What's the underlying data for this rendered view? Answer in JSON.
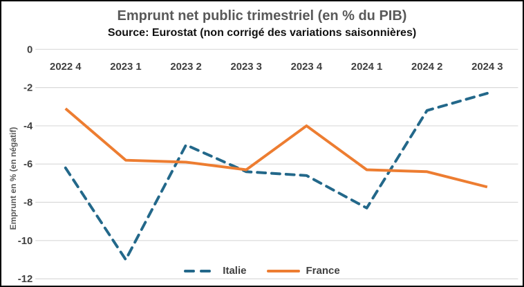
{
  "chart_data": {
    "type": "line",
    "title": "Emprunt net public trimestriel (en % du PIB)",
    "subtitle": "Source: Eurostat (non corrigé des variations saisonnières)",
    "ylabel": "Emprunt en % (en négatif)",
    "xlabel": "",
    "categories": [
      "2022 4",
      "2023 1",
      "2023 2",
      "2023 3",
      "2023 4",
      "2024 1",
      "2024 2",
      "2024 3"
    ],
    "series": [
      {
        "name": "Italie",
        "color": "#23688A",
        "style": "dashed",
        "values": [
          -6.2,
          -11.0,
          -5.0,
          -6.4,
          -6.6,
          -8.3,
          -3.2,
          -2.3
        ]
      },
      {
        "name": "France",
        "color": "#ED7D31",
        "style": "solid",
        "values": [
          -3.1,
          -5.8,
          -5.9,
          -6.3,
          -4.0,
          -6.3,
          -6.4,
          -7.2
        ]
      }
    ],
    "ylim": [
      0,
      -12
    ],
    "yticks": [
      0,
      -2,
      -4,
      -6,
      -8,
      -10,
      -12
    ],
    "grid": true,
    "legend_position": "bottom"
  },
  "colors": {
    "title_text": "#595959",
    "subtitle_text": "#111111",
    "axis_text": "#404040",
    "gridline": "#D9D9D9",
    "background": "#FFFFFF",
    "border": "#000000"
  }
}
